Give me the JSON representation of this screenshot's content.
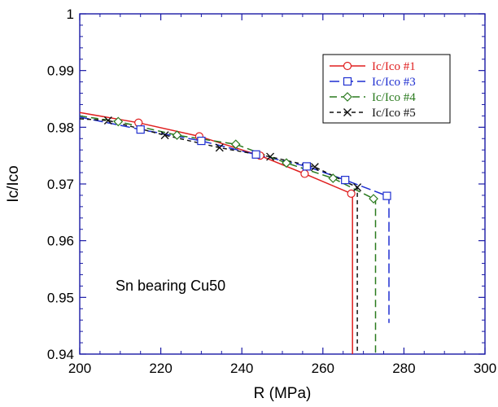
{
  "chart_data": {
    "type": "line",
    "xlabel": "R (MPa)",
    "ylabel": "Ic/Ico",
    "xlim": [
      200,
      300
    ],
    "ylim": [
      0.94,
      1.0
    ],
    "xticks": [
      200,
      220,
      240,
      260,
      280,
      300
    ],
    "yticks": [
      0.94,
      0.95,
      0.96,
      0.97,
      0.98,
      0.99,
      1.0
    ],
    "xtick_labels": [
      "200",
      "220",
      "240",
      "260",
      "280",
      "300"
    ],
    "ytick_labels": [
      "0.94",
      "0.95",
      "0.96",
      "0.97",
      "0.98",
      "0.99",
      "1"
    ],
    "grid": false,
    "legend_position": "top-right",
    "annotation": "Sn bearing Cu50",
    "axis_color": "#1a1aa6",
    "series": [
      {
        "name": "Ic/Ico #1",
        "color": "#e01f1f",
        "dash": "solid",
        "marker": "circle",
        "x": [
          200,
          214.5,
          229.5,
          244.5,
          255.5,
          267.0,
          267.3,
          267.3
        ],
        "y": [
          0.9826,
          0.9808,
          0.9784,
          0.975,
          0.9718,
          0.9683,
          0.9683,
          0.94
        ],
        "marker_x": [
          214.5,
          229.5,
          244.5,
          255.5,
          267.0
        ],
        "marker_y": [
          0.9808,
          0.9784,
          0.975,
          0.9718,
          0.9683
        ]
      },
      {
        "name": "Ic/Ico #3",
        "color": "#1f2fd0",
        "dash": "longdash",
        "marker": "square",
        "x": [
          200,
          215,
          230,
          243.5,
          256,
          265.5,
          275.8,
          276.3,
          276.3
        ],
        "y": [
          0.9818,
          0.9796,
          0.9776,
          0.9752,
          0.9731,
          0.9707,
          0.9679,
          0.9679,
          0.9455
        ],
        "marker_x": [
          215,
          230,
          243.5,
          256,
          265.5,
          275.8
        ],
        "marker_y": [
          0.9796,
          0.9776,
          0.9752,
          0.9731,
          0.9707,
          0.9679
        ]
      },
      {
        "name": "Ic/Ico #4",
        "color": "#2a7a1e",
        "dash": "dash",
        "marker": "diamond",
        "x": [
          200,
          209.5,
          224,
          238.5,
          251,
          262.5,
          272.5,
          273.0,
          273.0
        ],
        "y": [
          0.982,
          0.981,
          0.9786,
          0.977,
          0.9737,
          0.971,
          0.9674,
          0.9674,
          0.94
        ],
        "marker_x": [
          209.5,
          224,
          238.5,
          251,
          262.5,
          272.5
        ],
        "marker_y": [
          0.981,
          0.9786,
          0.977,
          0.9737,
          0.971,
          0.9674
        ]
      },
      {
        "name": "Ic/Ico #5",
        "color": "#111111",
        "dash": "shortdash",
        "marker": "x",
        "x": [
          200,
          207,
          221,
          234.5,
          247,
          258,
          268.5,
          268.5
        ],
        "y": [
          0.9815,
          0.9812,
          0.9786,
          0.9764,
          0.9748,
          0.973,
          0.9694,
          0.94
        ],
        "marker_x": [
          207,
          221,
          234.5,
          247,
          258,
          268.5
        ],
        "marker_y": [
          0.9812,
          0.9786,
          0.9764,
          0.9748,
          0.973,
          0.9694
        ]
      }
    ]
  }
}
